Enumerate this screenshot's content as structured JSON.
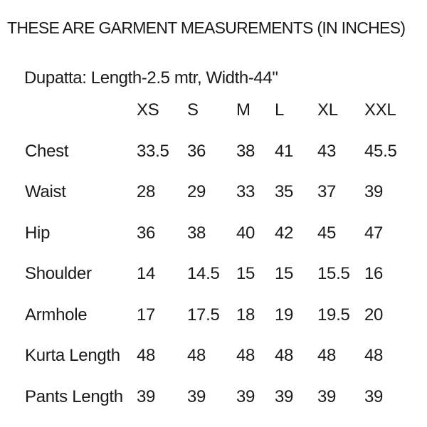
{
  "page": {
    "title": "THESE ARE GARMENT MEASUREMENTS (IN INCHES)",
    "subtitle": "Dupatta: Length-2.5 mtr, Width-44\""
  },
  "colors": {
    "background": "#ffffff",
    "text": "#1a1a1a"
  },
  "size_chart": {
    "columns": [
      "XS",
      "S",
      "M",
      "L",
      "XL",
      "XXL"
    ],
    "rows": [
      {
        "label": "Chest",
        "values": [
          "33.5",
          "36",
          "38",
          "41",
          "43",
          "45.5"
        ]
      },
      {
        "label": "Waist",
        "values": [
          "28",
          "29",
          "33",
          "35",
          "37",
          "39"
        ]
      },
      {
        "label": "Hip",
        "values": [
          "36",
          "38",
          "40",
          "42",
          "45",
          "47"
        ]
      },
      {
        "label": "Shoulder",
        "values": [
          "14",
          "14.5",
          "15",
          "15",
          "15.5",
          "16"
        ]
      },
      {
        "label": "Armhole",
        "values": [
          "17",
          "17.5",
          "18",
          "19",
          "19.5",
          "20"
        ]
      },
      {
        "label": "Kurta Length",
        "values": [
          "48",
          "48",
          "48",
          "48",
          "48",
          "48"
        ]
      },
      {
        "label": "Pants Length",
        "values": [
          "39",
          "39",
          "39",
          "39",
          "39",
          "39"
        ]
      }
    ]
  }
}
